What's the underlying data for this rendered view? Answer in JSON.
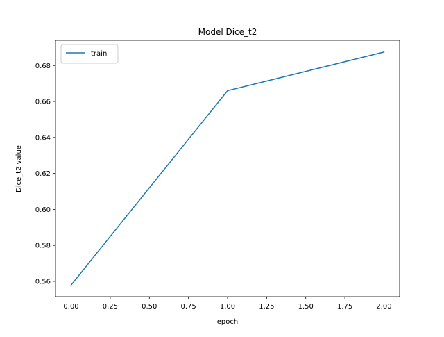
{
  "chart_data": {
    "type": "line",
    "title": "Model Dice_t2",
    "xlabel": "epoch",
    "ylabel": "Dice_t2 value",
    "x": [
      0,
      1,
      2
    ],
    "series": [
      {
        "name": "train",
        "values": [
          0.558,
          0.666,
          0.6875
        ],
        "color": "#1f77b4"
      }
    ],
    "xlim": [
      -0.1,
      2.1
    ],
    "ylim": [
      0.5515,
      0.694
    ],
    "xticks": [
      0.0,
      0.25,
      0.5,
      0.75,
      1.0,
      1.25,
      1.5,
      1.75,
      2.0
    ],
    "xtick_labels": [
      "0.00",
      "0.25",
      "0.50",
      "0.75",
      "1.00",
      "1.25",
      "1.50",
      "1.75",
      "2.00"
    ],
    "yticks": [
      0.56,
      0.58,
      0.6,
      0.62,
      0.64,
      0.66,
      0.68
    ],
    "ytick_labels": [
      "0.56",
      "0.58",
      "0.60",
      "0.62",
      "0.64",
      "0.66",
      "0.68"
    ],
    "grid": false,
    "legend_position": "top-left"
  }
}
